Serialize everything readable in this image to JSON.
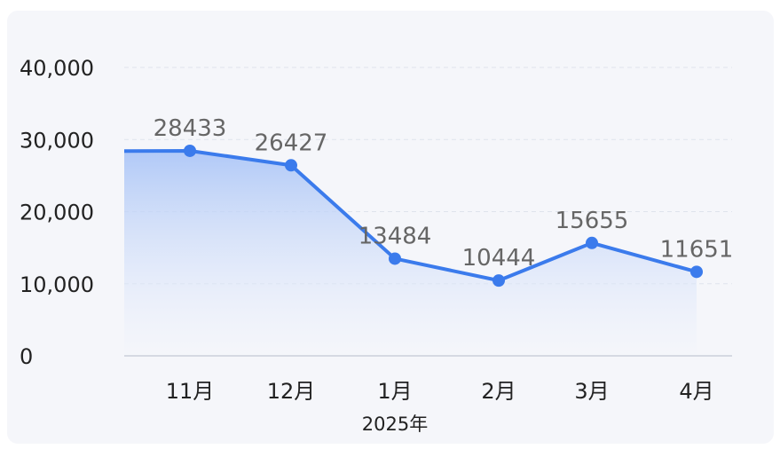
{
  "chart_data": {
    "type": "area",
    "categories": [
      "11月",
      "12月",
      "1月",
      "2月",
      "3月",
      "4月"
    ],
    "values": [
      28433,
      26427,
      13484,
      10444,
      15655,
      11651
    ],
    "start_value": 28400,
    "year_label": "2025年",
    "ylim": [
      0,
      40000
    ],
    "yticks": [
      "0",
      "10,000",
      "20,000",
      "30,000",
      "40,000"
    ],
    "grid": true,
    "colors": {
      "line": "#3b7bec",
      "fill_top": "#a9c4f7",
      "fill_bottom": "#f3f5fb",
      "grid": "#dfe3ec",
      "axis": "#d5d9e2"
    }
  }
}
